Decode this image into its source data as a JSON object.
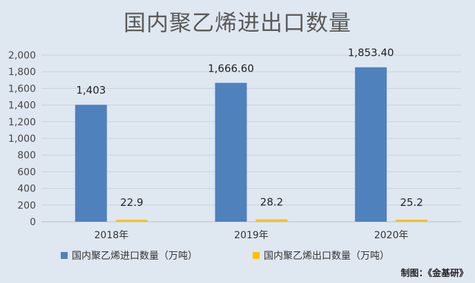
{
  "chart_data": {
    "type": "bar",
    "title": "国内聚乙烯进出口数量",
    "categories": [
      "2018年",
      "2019年",
      "2020年"
    ],
    "series": [
      {
        "name": "国内聚乙烯进口数量（万吨）",
        "values": [
          1403,
          1666.6,
          1853.4
        ],
        "labels": [
          "1,403",
          "1,666.60",
          "1,853.40"
        ],
        "color": "#4f81bd"
      },
      {
        "name": "国内聚乙烯出口数量（万吨）",
        "values": [
          22.9,
          28.2,
          25.2
        ],
        "labels": [
          "22.9",
          "28.2",
          "25.2"
        ],
        "color": "#ffc000"
      }
    ],
    "ylim": [
      0,
      2000
    ],
    "yticks": [
      0,
      200,
      400,
      600,
      800,
      1000,
      1200,
      1400,
      1600,
      1800,
      2000
    ],
    "ytick_labels": [
      "0",
      "200",
      "400",
      "600",
      "800",
      "1,000",
      "1,200",
      "1,400",
      "1,600",
      "1,800",
      "2,000"
    ],
    "grid": true,
    "legend_position": "bottom"
  },
  "credit": "制图：《金基研》"
}
